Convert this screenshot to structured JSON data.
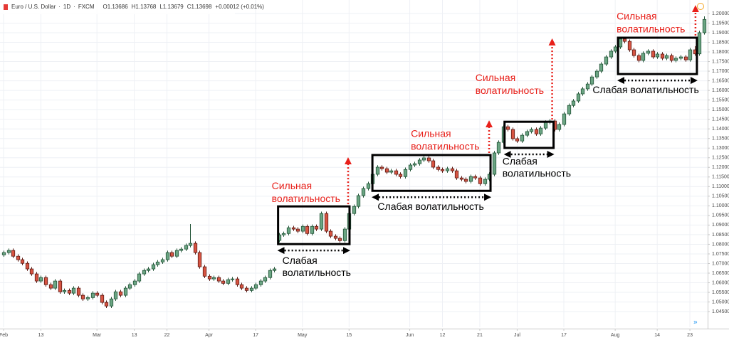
{
  "chart_data": {
    "type": "candlestick",
    "symbol": "Euro / U.S. Dollar",
    "interval": "1D",
    "source": "FXCM",
    "header_values": [
      "O1.13686",
      "H1.13768",
      "L1.13679",
      "C1.13698",
      "+0.00012 (+0.01%)"
    ],
    "colors": {
      "up": "#6ba583",
      "up_border": "#225437",
      "down": "#d75442",
      "down_border": "#5b1a13"
    },
    "grid": true,
    "xlim": [
      -0.76,
      150.8
    ],
    "xticks": [
      {
        "value": 0,
        "label": "Feb"
      },
      {
        "value": 8,
        "label": "13"
      },
      {
        "value": 20,
        "label": "Mar"
      },
      {
        "value": 28,
        "label": "13"
      },
      {
        "value": 35,
        "label": "22"
      },
      {
        "value": 44,
        "label": "Apr"
      },
      {
        "value": 54,
        "label": "17"
      },
      {
        "value": 64,
        "label": "May"
      },
      {
        "value": 74,
        "label": "15"
      },
      {
        "value": 87,
        "label": "Jun"
      },
      {
        "value": 94,
        "label": "12"
      },
      {
        "value": 102,
        "label": "21"
      },
      {
        "value": 110,
        "label": "Jul"
      },
      {
        "value": 120,
        "label": "17"
      },
      {
        "value": 131,
        "label": "Aug"
      },
      {
        "value": 140,
        "label": "14"
      },
      {
        "value": 147,
        "label": "23"
      }
    ],
    "ylim": [
      1.0369,
      1.207
    ],
    "yticks": [
      {
        "value": 1.045,
        "label": "1.04500"
      },
      {
        "value": 1.05,
        "label": "1.05000"
      },
      {
        "value": 1.055,
        "label": "1.05500"
      },
      {
        "value": 1.06,
        "label": "1.06000"
      },
      {
        "value": 1.065,
        "label": "1.06500"
      },
      {
        "value": 1.07,
        "label": "1.07000"
      },
      {
        "value": 1.075,
        "label": "1.07500"
      },
      {
        "value": 1.08,
        "label": "1.08000"
      },
      {
        "value": 1.085,
        "label": "1.08500"
      },
      {
        "value": 1.09,
        "label": "1.09000"
      },
      {
        "value": 1.095,
        "label": "1.09500"
      },
      {
        "value": 1.1,
        "label": "1.10000"
      },
      {
        "value": 1.105,
        "label": "1.10500"
      },
      {
        "value": 1.11,
        "label": "1.11000"
      },
      {
        "value": 1.115,
        "label": "1.11500"
      },
      {
        "value": 1.12,
        "label": "1.12000"
      },
      {
        "value": 1.125,
        "label": "1.12500"
      },
      {
        "value": 1.13,
        "label": "1.13000"
      },
      {
        "value": 1.135,
        "label": "1.13500"
      },
      {
        "value": 1.14,
        "label": "1.14000"
      },
      {
        "value": 1.145,
        "label": "1.14500"
      },
      {
        "value": 1.15,
        "label": "1.15000"
      },
      {
        "value": 1.155,
        "label": "1.15500"
      },
      {
        "value": 1.16,
        "label": "1.16000"
      },
      {
        "value": 1.165,
        "label": "1.16500"
      },
      {
        "value": 1.17,
        "label": "1.17000"
      },
      {
        "value": 1.175,
        "label": "1.17500"
      },
      {
        "value": 1.18,
        "label": "1.18000"
      },
      {
        "value": 1.185,
        "label": "1.18500"
      },
      {
        "value": 1.19,
        "label": "1.19000"
      },
      {
        "value": 1.195,
        "label": "1.19500"
      },
      {
        "value": 1.2,
        "label": "1.20000"
      }
    ],
    "open": [
      1.0745,
      1.0757,
      1.0768,
      1.0738,
      1.072,
      1.0701,
      1.0672,
      1.0646,
      1.0609,
      1.0627,
      1.059,
      1.0572,
      1.0609,
      1.0553,
      1.056,
      1.0546,
      1.0572,
      1.0535,
      1.0516,
      1.0523,
      1.0546,
      1.0535,
      1.0498,
      1.0479,
      1.0516,
      1.0553,
      1.0535,
      1.0572,
      1.059,
      1.0609,
      1.0646,
      1.0664,
      1.0672,
      1.0694,
      1.0708,
      1.072,
      1.0757,
      1.0738,
      1.0768,
      1.0775,
      1.0794,
      1.0805,
      1.0757,
      1.0683,
      1.0634,
      1.062,
      1.0627,
      1.0609,
      1.0597,
      1.0616,
      1.062,
      1.059,
      1.0572,
      1.056,
      1.0572,
      1.059,
      1.0609,
      1.0627,
      1.0664,
      1.082,
      1.0849,
      1.0856,
      1.0886,
      1.0879,
      1.0868,
      1.0893,
      1.0856,
      1.0893,
      1.0879,
      1.096,
      1.0868,
      1.0842,
      1.0831,
      1.0819,
      1.0879,
      1.096,
      1.0997,
      1.1053,
      1.109,
      1.1115,
      1.1164,
      1.1201,
      1.1193,
      1.1175,
      1.1182,
      1.1164,
      1.1152,
      1.1189,
      1.1212,
      1.1219,
      1.1238,
      1.1249,
      1.1234,
      1.1201,
      1.1189,
      1.1182,
      1.1193,
      1.1182,
      1.1145,
      1.1138,
      1.1127,
      1.1152,
      1.1145,
      1.1115,
      1.1138,
      1.1164,
      1.1275,
      1.133,
      1.1411,
      1.1397,
      1.1349,
      1.1337,
      1.1367,
      1.1386,
      1.1397,
      1.1374,
      1.1404,
      1.1434,
      1.1441,
      1.1397,
      1.1423,
      1.1478,
      1.1522,
      1.1545,
      1.1582,
      1.1608,
      1.1633,
      1.167,
      1.17,
      1.1737,
      1.1774,
      1.1804,
      1.1826,
      1.1867,
      1.1855,
      1.1811,
      1.1781,
      1.1756,
      1.1793,
      1.1804,
      1.1774,
      1.1789,
      1.1767,
      1.1781,
      1.1756,
      1.1767,
      1.1774,
      1.1759,
      1.1811,
      1.179,
      1.19
    ],
    "high": [
      1.0767,
      1.0778,
      1.0778,
      1.0748,
      1.073,
      1.0711,
      1.0682,
      1.0656,
      1.0637,
      1.0637,
      1.06,
      1.0619,
      1.0619,
      1.057,
      1.057,
      1.0582,
      1.0582,
      1.0545,
      1.0533,
      1.0556,
      1.0556,
      1.0545,
      1.0508,
      1.0526,
      1.0563,
      1.0563,
      1.0582,
      1.06,
      1.0619,
      1.0656,
      1.0674,
      1.0682,
      1.0704,
      1.0718,
      1.073,
      1.0767,
      1.0767,
      1.0778,
      1.0785,
      1.0804,
      1.0905,
      1.0815,
      1.0767,
      1.0693,
      1.0644,
      1.0637,
      1.0637,
      1.0619,
      1.0626,
      1.063,
      1.063,
      1.06,
      1.0582,
      1.0582,
      1.06,
      1.0619,
      1.0637,
      1.0674,
      1.0682,
      1.0859,
      1.0866,
      1.0896,
      1.0896,
      1.0889,
      1.0903,
      1.0903,
      1.0903,
      1.0903,
      1.097,
      1.097,
      1.0878,
      1.0852,
      1.0841,
      1.0889,
      1.097,
      1.1007,
      1.1063,
      1.11,
      1.1125,
      1.1174,
      1.1211,
      1.1211,
      1.1203,
      1.1192,
      1.1192,
      1.1174,
      1.1199,
      1.1222,
      1.1229,
      1.1248,
      1.1259,
      1.1259,
      1.1244,
      1.1211,
      1.1199,
      1.1203,
      1.1203,
      1.1192,
      1.1155,
      1.1148,
      1.1162,
      1.1162,
      1.1155,
      1.1148,
      1.1174,
      1.1285,
      1.134,
      1.1421,
      1.1421,
      1.1407,
      1.1359,
      1.1377,
      1.1396,
      1.1407,
      1.1407,
      1.1414,
      1.1444,
      1.1451,
      1.1451,
      1.1433,
      1.1488,
      1.1532,
      1.1555,
      1.1592,
      1.1618,
      1.1643,
      1.168,
      1.171,
      1.1747,
      1.1784,
      1.1814,
      1.1836,
      1.1877,
      1.1877,
      1.1865,
      1.1821,
      1.1791,
      1.1803,
      1.1814,
      1.1814,
      1.1799,
      1.1799,
      1.1791,
      1.1791,
      1.1777,
      1.1784,
      1.1784,
      1.1821,
      1.183,
      1.191,
      1.1985
    ],
    "low": [
      1.0735,
      1.0747,
      1.0728,
      1.071,
      1.0691,
      1.0662,
      1.0636,
      1.0599,
      1.0599,
      1.058,
      1.0562,
      1.0562,
      1.0543,
      1.0543,
      1.0536,
      1.0536,
      1.0525,
      1.0506,
      1.0506,
      1.0513,
      1.0525,
      1.0488,
      1.0469,
      1.0469,
      1.0506,
      1.0525,
      1.0525,
      1.0562,
      1.058,
      1.0599,
      1.0636,
      1.0654,
      1.0662,
      1.0684,
      1.0698,
      1.071,
      1.0728,
      1.0728,
      1.0758,
      1.0765,
      1.0784,
      1.0747,
      1.0673,
      1.0624,
      1.061,
      1.061,
      1.0599,
      1.0587,
      1.0587,
      1.0606,
      1.058,
      1.0562,
      1.055,
      1.055,
      1.0562,
      1.058,
      1.0599,
      1.0617,
      1.0654,
      1.081,
      1.0839,
      1.0846,
      1.0869,
      1.0858,
      1.0858,
      1.0846,
      1.0846,
      1.0869,
      1.0869,
      1.0858,
      1.0832,
      1.0821,
      1.0809,
      1.0809,
      1.0869,
      1.095,
      1.0987,
      1.1043,
      1.108,
      1.1105,
      1.1154,
      1.1183,
      1.1165,
      1.1165,
      1.1154,
      1.1142,
      1.1142,
      1.1179,
      1.1202,
      1.1209,
      1.1228,
      1.1224,
      1.1191,
      1.1179,
      1.1172,
      1.1172,
      1.1172,
      1.1135,
      1.1128,
      1.1117,
      1.1117,
      1.1135,
      1.1105,
      1.1105,
      1.1128,
      1.1154,
      1.1265,
      1.132,
      1.1387,
      1.1339,
      1.1327,
      1.1327,
      1.1357,
      1.1376,
      1.1364,
      1.1364,
      1.1394,
      1.1424,
      1.1387,
      1.1387,
      1.1413,
      1.1468,
      1.1512,
      1.1535,
      1.1572,
      1.1598,
      1.1623,
      1.166,
      1.169,
      1.1727,
      1.1764,
      1.1794,
      1.1816,
      1.1845,
      1.1801,
      1.1771,
      1.1746,
      1.1746,
      1.1783,
      1.1764,
      1.1764,
      1.1757,
      1.1757,
      1.1746,
      1.1746,
      1.1757,
      1.1749,
      1.1749,
      1.178,
      1.178,
      1.189
    ],
    "close": [
      1.0757,
      1.0768,
      1.0738,
      1.072,
      1.0701,
      1.0672,
      1.0646,
      1.0609,
      1.0627,
      1.059,
      1.0572,
      1.0609,
      1.0553,
      1.056,
      1.0546,
      1.0572,
      1.0535,
      1.0516,
      1.0523,
      1.0546,
      1.0535,
      1.0498,
      1.0479,
      1.0516,
      1.0553,
      1.0535,
      1.0572,
      1.059,
      1.0609,
      1.0646,
      1.0664,
      1.0672,
      1.0694,
      1.0708,
      1.072,
      1.0757,
      1.0738,
      1.0768,
      1.0775,
      1.0794,
      1.0805,
      1.0757,
      1.0683,
      1.0634,
      1.062,
      1.0627,
      1.0609,
      1.0597,
      1.0616,
      1.062,
      1.059,
      1.0572,
      1.056,
      1.0572,
      1.059,
      1.0609,
      1.0627,
      1.0664,
      1.0672,
      1.0849,
      1.0856,
      1.0886,
      1.0879,
      1.0868,
      1.0893,
      1.0856,
      1.0893,
      1.0879,
      1.096,
      1.0868,
      1.0842,
      1.0831,
      1.0819,
      1.0879,
      1.096,
      1.0997,
      1.1053,
      1.109,
      1.1115,
      1.1164,
      1.1201,
      1.1193,
      1.1175,
      1.1182,
      1.1164,
      1.1152,
      1.1189,
      1.1212,
      1.1219,
      1.1238,
      1.1249,
      1.1234,
      1.1201,
      1.1189,
      1.1182,
      1.1193,
      1.1182,
      1.1145,
      1.1138,
      1.1127,
      1.1152,
      1.1145,
      1.1115,
      1.1138,
      1.1164,
      1.1275,
      1.133,
      1.1411,
      1.1397,
      1.1349,
      1.1337,
      1.1367,
      1.1386,
      1.1397,
      1.1374,
      1.1404,
      1.1434,
      1.1441,
      1.1397,
      1.1423,
      1.1478,
      1.1522,
      1.1545,
      1.1582,
      1.1608,
      1.1633,
      1.167,
      1.17,
      1.1737,
      1.1774,
      1.1804,
      1.1826,
      1.1867,
      1.1855,
      1.1811,
      1.1781,
      1.1756,
      1.1793,
      1.1804,
      1.1774,
      1.1789,
      1.1767,
      1.1781,
      1.1756,
      1.1767,
      1.1774,
      1.1759,
      1.1811,
      1.179,
      1.19,
      1.1969
    ],
    "annotations": [
      {
        "box_x": [
          58.8,
          74.1
        ],
        "box_y": [
          1.0801,
          1.0997
        ],
        "arrow_to": 1.1249,
        "strong": [
          "Сильная",
          "волатильность"
        ],
        "weak": [
          "Слабая",
          "волатильность"
        ]
      },
      {
        "box_x": [
          79.0,
          104.3
        ],
        "box_y": [
          1.1078,
          1.1264
        ],
        "arrow_to": 1.1441,
        "strong": [
          "Сильная",
          "волатильность"
        ],
        "weak": [
          "Слабая волатильность"
        ]
      },
      {
        "box_x": [
          107.3,
          117.8
        ],
        "box_y": [
          1.1301,
          1.1437
        ],
        "arrow_to": 1.1867,
        "strong": [
          "Сильная",
          "волатильность"
        ],
        "weak": [
          "Слабая",
          "волатильность"
        ]
      },
      {
        "box_x": [
          131.6,
          148.5
        ],
        "box_y": [
          1.1685,
          1.1874
        ],
        "arrow_to": 1.204,
        "strong": [
          "Сильная",
          "волатильность"
        ],
        "weak": [
          "Слабая волатильность"
        ]
      }
    ]
  }
}
